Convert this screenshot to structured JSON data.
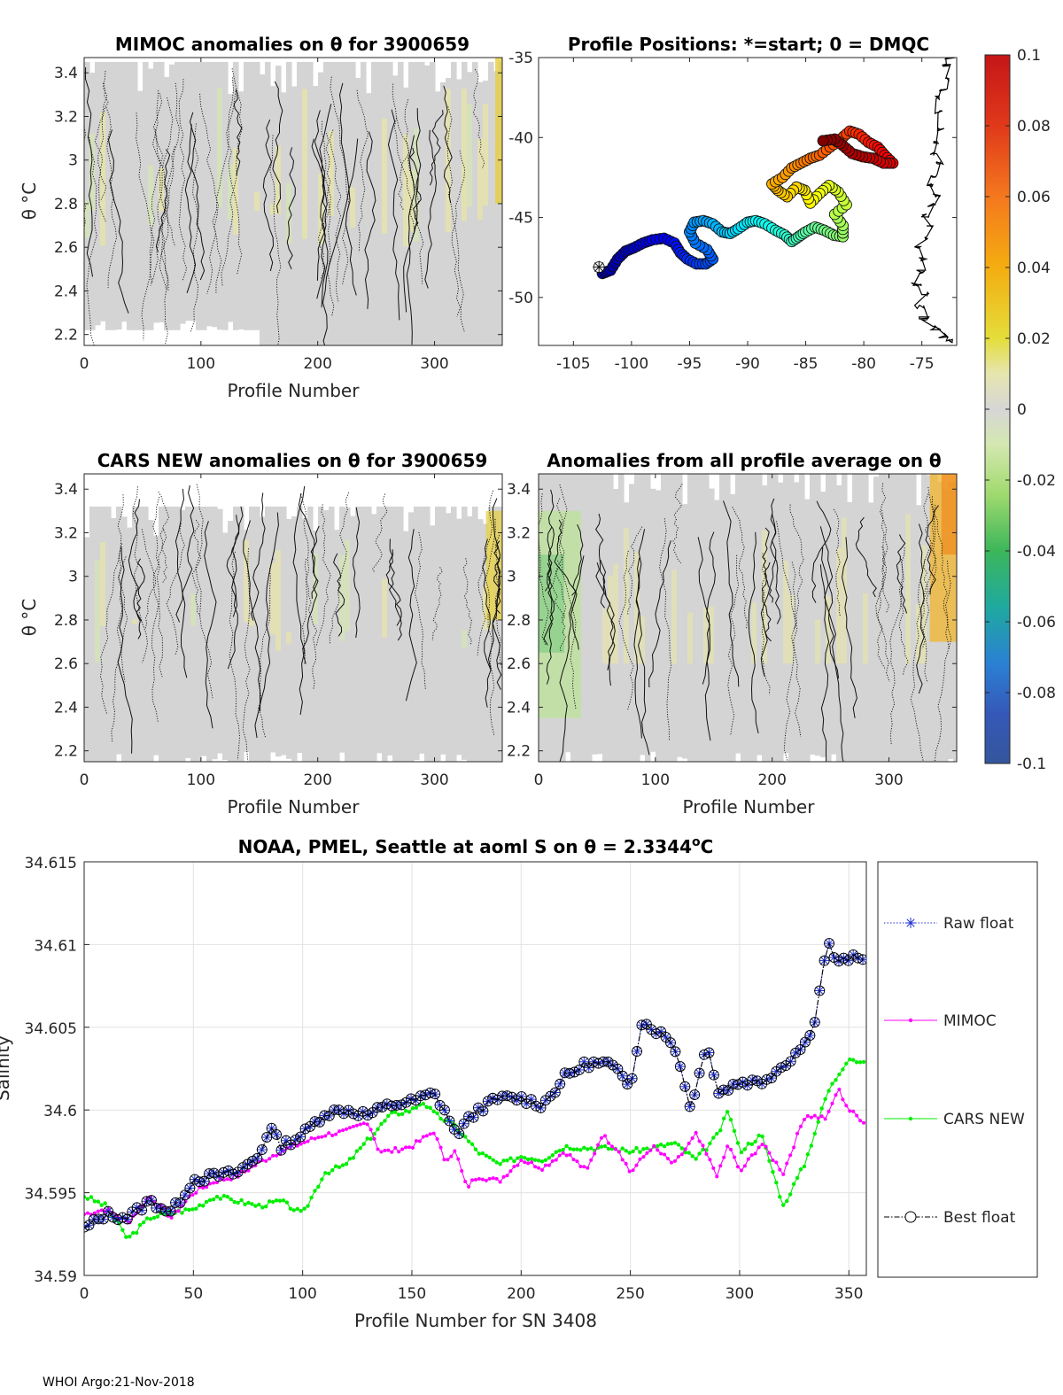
{
  "footer": "WHOI Argo:21-Nov-2018",
  "colors": {
    "raw": "#1f2fd0",
    "mimoc": "#ff00ff",
    "cars": "#00ee00",
    "best": "#000000",
    "anomaly_neutral": "#d4d4d4"
  },
  "chart_data": [
    {
      "id": "mimoc_anom",
      "type": "heatmap",
      "title": "MIMOC anomalies on θ  for 3900659",
      "xlabel": "Profile Number",
      "ylabel": "θ °C",
      "xlim": [
        0,
        358
      ],
      "ylim": [
        2.15,
        3.47
      ],
      "xticks": [
        0,
        100,
        200,
        300
      ],
      "yticks": [
        2.2,
        2.4,
        2.6,
        2.8,
        3,
        3.2,
        3.4
      ],
      "ytick_labels": [
        "2.2",
        "2.4",
        "2.6",
        "2.8",
        "3",
        "3.2",
        "3.4"
      ],
      "value_range": [
        -0.1,
        0.1
      ]
    },
    {
      "id": "positions",
      "type": "scatter",
      "title": "Profile Positions: *=start; 0 = DMQC",
      "xlim": [
        -108,
        -72
      ],
      "ylim": [
        -53,
        -35
      ],
      "xticks": [
        -105,
        -100,
        -95,
        -90,
        -85,
        -80,
        -75
      ],
      "xtick_labels": [
        "-105",
        "-100",
        "-95",
        "-90",
        "-85",
        "-80",
        "-75"
      ],
      "yticks": [
        -35,
        -40,
        -45,
        -50
      ],
      "ytick_labels": [
        "-35",
        "-40",
        "-45",
        "-50"
      ],
      "ytick_side": "left-outside",
      "path": [
        [
          -102.8,
          -48.1
        ],
        [
          -102.5,
          -48.5
        ],
        [
          -101.8,
          -48.3
        ],
        [
          -101.2,
          -47.6
        ],
        [
          -100.5,
          -47.1
        ],
        [
          -99.8,
          -46.9
        ],
        [
          -99.0,
          -46.6
        ],
        [
          -98.2,
          -46.4
        ],
        [
          -97.2,
          -46.3
        ],
        [
          -96.3,
          -46.6
        ],
        [
          -95.8,
          -47.2
        ],
        [
          -95.2,
          -47.6
        ],
        [
          -94.4,
          -47.9
        ],
        [
          -93.6,
          -47.9
        ],
        [
          -93.0,
          -47.6
        ],
        [
          -93.5,
          -47.0
        ],
        [
          -94.5,
          -46.6
        ],
        [
          -95.0,
          -45.9
        ],
        [
          -94.6,
          -45.3
        ],
        [
          -93.8,
          -45.2
        ],
        [
          -93.0,
          -45.4
        ],
        [
          -92.2,
          -45.9
        ],
        [
          -91.5,
          -46.0
        ],
        [
          -90.8,
          -45.7
        ],
        [
          -90.0,
          -45.3
        ],
        [
          -89.3,
          -45.2
        ],
        [
          -88.5,
          -45.4
        ],
        [
          -87.6,
          -45.8
        ],
        [
          -86.8,
          -46.1
        ],
        [
          -86.2,
          -46.5
        ],
        [
          -85.6,
          -46.2
        ],
        [
          -85.0,
          -45.9
        ],
        [
          -84.2,
          -45.6
        ],
        [
          -83.4,
          -45.8
        ],
        [
          -82.6,
          -46.1
        ],
        [
          -81.8,
          -46.2
        ],
        [
          -81.8,
          -45.5
        ],
        [
          -82.5,
          -44.8
        ],
        [
          -81.5,
          -44.2
        ],
        [
          -82.2,
          -43.4
        ],
        [
          -83.0,
          -43.0
        ],
        [
          -83.8,
          -43.5
        ],
        [
          -84.6,
          -44.1
        ],
        [
          -85.1,
          -43.3
        ],
        [
          -85.8,
          -43.1
        ],
        [
          -86.6,
          -43.7
        ],
        [
          -87.4,
          -43.3
        ],
        [
          -87.9,
          -42.9
        ],
        [
          -87.0,
          -42.5
        ],
        [
          -86.2,
          -41.9
        ],
        [
          -85.4,
          -41.6
        ],
        [
          -84.6,
          -41.3
        ],
        [
          -83.8,
          -41.1
        ],
        [
          -82.9,
          -40.6
        ],
        [
          -82.0,
          -40.1
        ],
        [
          -81.2,
          -39.6
        ],
        [
          -80.4,
          -39.8
        ],
        [
          -79.6,
          -40.3
        ],
        [
          -78.8,
          -40.6
        ],
        [
          -78.2,
          -41.1
        ],
        [
          -77.5,
          -41.6
        ],
        [
          -78.3,
          -41.6
        ],
        [
          -79.2,
          -41.3
        ],
        [
          -80.1,
          -41.2
        ],
        [
          -81.0,
          -41.0
        ],
        [
          -81.8,
          -40.5
        ],
        [
          -82.5,
          -40.1
        ],
        [
          -83.5,
          -40.2
        ]
      ],
      "coastline": [
        [
          -72.6,
          -35.0
        ],
        [
          -72.9,
          -35.5
        ],
        [
          -72.9,
          -36.4
        ],
        [
          -73.2,
          -37.0
        ],
        [
          -73.6,
          -37.5
        ],
        [
          -73.5,
          -38.4
        ],
        [
          -73.3,
          -39.5
        ],
        [
          -73.6,
          -40.3
        ],
        [
          -73.9,
          -41.0
        ],
        [
          -73.6,
          -41.6
        ],
        [
          -73.9,
          -42.4
        ],
        [
          -74.4,
          -43.0
        ],
        [
          -73.8,
          -43.6
        ],
        [
          -74.1,
          -44.2
        ],
        [
          -74.8,
          -44.9
        ],
        [
          -74.3,
          -45.6
        ],
        [
          -74.7,
          -46.3
        ],
        [
          -75.4,
          -46.9
        ],
        [
          -74.9,
          -47.6
        ],
        [
          -75.1,
          -48.4
        ],
        [
          -75.5,
          -49.2
        ],
        [
          -74.6,
          -49.8
        ],
        [
          -75.2,
          -50.6
        ],
        [
          -74.8,
          -51.3
        ],
        [
          -73.8,
          -51.9
        ],
        [
          -73.2,
          -52.4
        ],
        [
          -72.6,
          -52.7
        ]
      ]
    },
    {
      "id": "cars_anom",
      "type": "heatmap",
      "title": "CARS NEW anomalies on θ for 3900659",
      "xlabel": "Profile Number",
      "ylabel": "θ °C",
      "xlim": [
        0,
        358
      ],
      "ylim": [
        2.15,
        3.47
      ],
      "xticks": [
        0,
        100,
        200,
        300
      ],
      "yticks": [
        2.2,
        2.4,
        2.6,
        2.8,
        3,
        3.2,
        3.4
      ],
      "ytick_labels": [
        "2.2",
        "2.4",
        "2.6",
        "2.8",
        "3",
        "3.2",
        "3.4"
      ],
      "value_range": [
        -0.1,
        0.1
      ]
    },
    {
      "id": "profile_avg_anom",
      "type": "heatmap",
      "title": "Anomalies from all profile average on θ",
      "xlabel": "Profile Number",
      "xlim": [
        0,
        358
      ],
      "ylim": [
        2.15,
        3.47
      ],
      "xticks": [
        0,
        100,
        200,
        300
      ],
      "yticks": [
        2.2,
        2.4,
        2.6,
        2.8,
        3,
        3.2,
        3.4
      ],
      "ytick_labels": [
        "2.2",
        "2.4",
        "2.6",
        "2.8",
        "3",
        "3.2",
        "3.4"
      ],
      "value_range": [
        -0.1,
        0.1
      ]
    },
    {
      "id": "colorbar",
      "type": "heatmap",
      "range": [
        -0.1,
        0.1
      ],
      "ticks": [
        0.1,
        0.08,
        0.06,
        0.04,
        0.02,
        0,
        -0.02,
        -0.04,
        -0.06,
        -0.08,
        -0.1
      ],
      "tick_labels": [
        "0.1",
        "0.08",
        "0.06",
        "0.04",
        "0.02",
        "0",
        "-0.02",
        "-0.04",
        "-0.06",
        "-0.08",
        "-0.1"
      ]
    },
    {
      "id": "salinity",
      "type": "line",
      "title": "NOAA, PMEL, Seattle at aoml S on θ = 2.3344°C",
      "title_parts": [
        "NOAA, PMEL, Seattle at aoml S on θ = 2.3344",
        "o",
        "C"
      ],
      "xlabel": "Profile Number for SN 3408",
      "ylabel": "Salinity",
      "xlim": [
        0,
        358
      ],
      "ylim": [
        34.59,
        34.615
      ],
      "xticks": [
        0,
        50,
        100,
        150,
        200,
        250,
        300,
        350
      ],
      "yticks": [
        34.59,
        34.595,
        34.6,
        34.605,
        34.61,
        34.615
      ],
      "ytick_labels": [
        "34.59",
        "34.595",
        "34.6",
        "34.605",
        "34.61",
        "34.615"
      ],
      "grid": true,
      "legend_position": "right-outside",
      "series": [
        {
          "name": "Raw float",
          "marker": "asterisk",
          "line": "dotted",
          "x": [
            0,
            10,
            20,
            30,
            40,
            50,
            60,
            70,
            80,
            85,
            90,
            100,
            110,
            120,
            130,
            140,
            150,
            160,
            165,
            170,
            180,
            190,
            200,
            210,
            220,
            230,
            240,
            250,
            255,
            260,
            270,
            278,
            285,
            290,
            300,
            310,
            320,
            330,
            335,
            340,
            345,
            350,
            358
          ],
          "values": [
            34.5928,
            34.5937,
            34.5935,
            34.5945,
            34.5938,
            34.5958,
            34.596,
            34.5962,
            34.5972,
            34.599,
            34.5978,
            34.5985,
            34.5998,
            34.6,
            34.5997,
            34.6003,
            34.6005,
            34.601,
            34.6,
            34.5985,
            34.6,
            34.6007,
            34.6007,
            34.6003,
            34.602,
            34.6028,
            34.6028,
            34.6015,
            34.6053,
            34.605,
            34.604,
            34.6,
            34.6043,
            34.601,
            34.6017,
            34.6017,
            34.6027,
            34.604,
            34.6057,
            34.6102,
            34.6088,
            34.6092,
            34.609
          ]
        },
        {
          "name": "MIMOC",
          "marker": "dot",
          "line": "solid",
          "x": [
            0,
            10,
            20,
            30,
            40,
            50,
            60,
            70,
            80,
            90,
            100,
            110,
            120,
            130,
            135,
            140,
            150,
            160,
            165,
            170,
            175,
            180,
            190,
            200,
            210,
            220,
            230,
            237,
            245,
            250,
            260,
            270,
            280,
            290,
            295,
            300,
            310,
            320,
            330,
            340,
            345,
            350,
            358
          ],
          "values": [
            34.5937,
            34.594,
            34.5932,
            34.5948,
            34.5935,
            34.595,
            34.5957,
            34.596,
            34.5968,
            34.5975,
            34.598,
            34.5985,
            34.5987,
            34.5993,
            34.5975,
            34.5975,
            34.5978,
            34.5987,
            34.597,
            34.5975,
            34.5953,
            34.596,
            34.5957,
            34.597,
            34.5965,
            34.5975,
            34.5963,
            34.5985,
            34.5975,
            34.5962,
            34.5978,
            34.5967,
            34.5985,
            34.596,
            34.598,
            34.5962,
            34.598,
            34.5962,
            34.5997,
            34.5995,
            34.6013,
            34.6,
            34.5992
          ]
        },
        {
          "name": "CARS NEW",
          "marker": "dot",
          "line": "solid",
          "x": [
            0,
            10,
            20,
            30,
            40,
            50,
            60,
            70,
            80,
            90,
            100,
            110,
            120,
            130,
            140,
            150,
            155,
            160,
            170,
            180,
            190,
            200,
            210,
            220,
            230,
            240,
            250,
            260,
            270,
            280,
            290,
            295,
            300,
            310,
            320,
            330,
            340,
            350,
            358
          ],
          "values": [
            34.5948,
            34.5942,
            34.5922,
            34.5935,
            34.5938,
            34.594,
            34.5948,
            34.5945,
            34.5942,
            34.5945,
            34.5937,
            34.5962,
            34.5967,
            34.5982,
            34.5997,
            34.6,
            34.6005,
            34.5998,
            34.599,
            34.5975,
            34.5967,
            34.5972,
            34.597,
            34.5978,
            34.5977,
            34.5977,
            34.5975,
            34.5977,
            34.598,
            34.597,
            34.5985,
            34.6,
            34.5975,
            34.5985,
            34.5942,
            34.5968,
            34.601,
            34.6032,
            34.6027
          ]
        },
        {
          "name": "Best float",
          "marker": "circle",
          "line": "dashdot",
          "x": [
            0,
            10,
            20,
            30,
            40,
            50,
            60,
            70,
            80,
            85,
            90,
            100,
            110,
            120,
            130,
            140,
            150,
            160,
            165,
            170,
            180,
            190,
            200,
            210,
            220,
            230,
            240,
            250,
            255,
            260,
            270,
            278,
            285,
            290,
            300,
            310,
            320,
            330,
            335,
            340,
            345,
            350,
            358
          ],
          "values": [
            34.5928,
            34.5937,
            34.5935,
            34.5945,
            34.5938,
            34.5958,
            34.596,
            34.5962,
            34.5972,
            34.599,
            34.5978,
            34.5985,
            34.5998,
            34.6,
            34.5997,
            34.6003,
            34.6005,
            34.601,
            34.6,
            34.5985,
            34.6,
            34.6007,
            34.6007,
            34.6003,
            34.602,
            34.6028,
            34.6028,
            34.6015,
            34.6053,
            34.605,
            34.604,
            34.6,
            34.6043,
            34.601,
            34.6017,
            34.6017,
            34.6027,
            34.604,
            34.6057,
            34.6102,
            34.6088,
            34.6092,
            34.609
          ]
        }
      ]
    }
  ]
}
